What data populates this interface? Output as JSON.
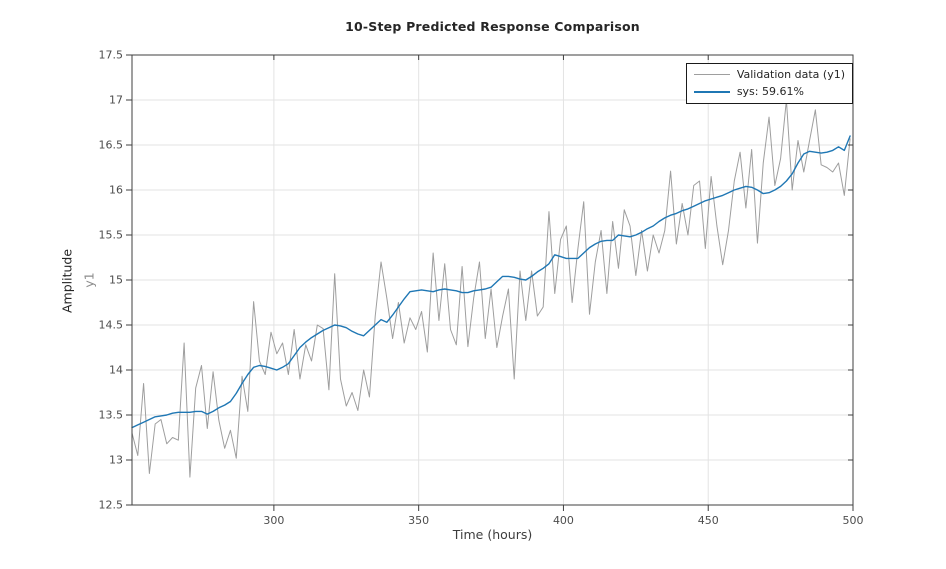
{
  "figure": {
    "title": "10-Step Predicted Response Comparison",
    "xlabel": "Time (hours)",
    "ylabel_line1": "Amplitude",
    "ylabel_line2": "y1"
  },
  "legend": {
    "entries": [
      {
        "label": "Validation data (y1)",
        "color": "#9e9e9e",
        "swatch_thickness": 1.2
      },
      {
        "label": "sys: 59.61%",
        "color": "#1f77b4",
        "swatch_thickness": 2.2
      }
    ]
  },
  "colors": {
    "background": "#ffffff",
    "axis_box": "#3f3f3f",
    "grid": "#e3e3e3",
    "tick_label": "#4d4d4d",
    "validation_line": "#9e9e9e",
    "sys_line": "#1f77b4"
  },
  "chart_data": {
    "type": "line",
    "title": "10-Step Predicted Response Comparison",
    "xlabel": "Time (hours)",
    "ylabel": "Amplitude y1",
    "xlim": [
      251,
      500
    ],
    "ylim": [
      12.5,
      17.5
    ],
    "x_ticks": [
      300,
      350,
      400,
      450,
      500
    ],
    "y_ticks": [
      12.5,
      13,
      13.5,
      14,
      14.5,
      15,
      15.5,
      16,
      16.5,
      17,
      17.5
    ],
    "grid": true,
    "legend_position": "top-right",
    "x": [
      251,
      253,
      255,
      257,
      259,
      261,
      263,
      265,
      267,
      269,
      271,
      273,
      275,
      277,
      279,
      281,
      283,
      285,
      287,
      289,
      291,
      293,
      295,
      297,
      299,
      301,
      303,
      305,
      307,
      309,
      311,
      313,
      315,
      317,
      319,
      321,
      323,
      325,
      327,
      329,
      331,
      333,
      335,
      337,
      339,
      341,
      343,
      345,
      347,
      349,
      351,
      353,
      355,
      357,
      359,
      361,
      363,
      365,
      367,
      369,
      371,
      373,
      375,
      377,
      379,
      381,
      383,
      385,
      387,
      389,
      391,
      393,
      395,
      397,
      399,
      401,
      403,
      405,
      407,
      409,
      411,
      413,
      415,
      417,
      419,
      421,
      423,
      425,
      427,
      429,
      431,
      433,
      435,
      437,
      439,
      441,
      443,
      445,
      447,
      449,
      451,
      453,
      455,
      457,
      459,
      461,
      463,
      465,
      467,
      469,
      471,
      473,
      475,
      477,
      479,
      481,
      483,
      485,
      487,
      489,
      491,
      493,
      495,
      497,
      499
    ],
    "series": [
      {
        "name": "Validation data (y1)",
        "color": "#9e9e9e",
        "line_width": 1,
        "values": [
          13.3,
          13.05,
          13.85,
          12.85,
          13.4,
          13.45,
          13.18,
          13.25,
          13.22,
          14.3,
          12.81,
          13.8,
          14.05,
          13.35,
          13.98,
          13.44,
          13.13,
          13.33,
          13.02,
          13.93,
          13.54,
          14.76,
          14.1,
          13.95,
          14.42,
          14.18,
          14.3,
          13.95,
          14.45,
          13.9,
          14.28,
          14.1,
          14.5,
          14.46,
          13.78,
          15.07,
          13.9,
          13.6,
          13.75,
          13.55,
          14.0,
          13.7,
          14.6,
          15.2,
          14.8,
          14.35,
          14.75,
          14.3,
          14.58,
          14.45,
          14.65,
          14.2,
          15.3,
          14.55,
          15.18,
          14.45,
          14.28,
          15.15,
          14.26,
          14.8,
          15.2,
          14.35,
          14.9,
          14.25,
          14.6,
          14.9,
          13.9,
          15.1,
          14.55,
          15.1,
          14.6,
          14.7,
          15.76,
          14.85,
          15.45,
          15.6,
          14.75,
          15.35,
          15.87,
          14.62,
          15.2,
          15.55,
          14.85,
          15.65,
          15.13,
          15.78,
          15.6,
          15.05,
          15.55,
          15.1,
          15.5,
          15.3,
          15.55,
          16.21,
          15.4,
          15.85,
          15.5,
          16.05,
          16.1,
          15.35,
          16.15,
          15.6,
          15.17,
          15.55,
          16.1,
          16.42,
          15.8,
          16.45,
          15.41,
          16.3,
          16.81,
          16.05,
          16.35,
          17.0,
          16.0,
          16.55,
          16.2,
          16.55,
          16.89,
          16.28,
          16.25,
          16.2,
          16.3,
          15.94,
          16.57
        ]
      },
      {
        "name": "sys: 59.61%",
        "color": "#1f77b4",
        "line_width": 1.4,
        "values": [
          13.36,
          13.39,
          13.42,
          13.45,
          13.48,
          13.49,
          13.5,
          13.52,
          13.53,
          13.53,
          13.53,
          13.54,
          13.54,
          13.51,
          13.54,
          13.58,
          13.61,
          13.65,
          13.74,
          13.85,
          13.95,
          14.03,
          14.05,
          14.04,
          14.02,
          14.0,
          14.03,
          14.07,
          14.16,
          14.25,
          14.31,
          14.36,
          14.4,
          14.44,
          14.47,
          14.5,
          14.49,
          14.47,
          14.43,
          14.4,
          14.38,
          14.44,
          14.5,
          14.56,
          14.53,
          14.61,
          14.7,
          14.79,
          14.87,
          14.88,
          14.89,
          14.88,
          14.87,
          14.89,
          14.9,
          14.89,
          14.88,
          14.86,
          14.86,
          14.88,
          14.89,
          14.9,
          14.92,
          14.98,
          15.04,
          15.04,
          15.03,
          15.01,
          15.0,
          15.04,
          15.09,
          15.13,
          15.18,
          15.28,
          15.26,
          15.24,
          15.24,
          15.24,
          15.3,
          15.36,
          15.4,
          15.43,
          15.44,
          15.44,
          15.5,
          15.49,
          15.48,
          15.5,
          15.53,
          15.57,
          15.6,
          15.65,
          15.69,
          15.72,
          15.74,
          15.77,
          15.79,
          15.82,
          15.85,
          15.88,
          15.9,
          15.92,
          15.94,
          15.97,
          16.0,
          16.02,
          16.04,
          16.03,
          16.0,
          15.96,
          15.97,
          16.0,
          16.04,
          16.1,
          16.18,
          16.3,
          16.4,
          16.43,
          16.42,
          16.41,
          16.42,
          16.44,
          16.48,
          16.44,
          16.6
        ]
      }
    ]
  }
}
